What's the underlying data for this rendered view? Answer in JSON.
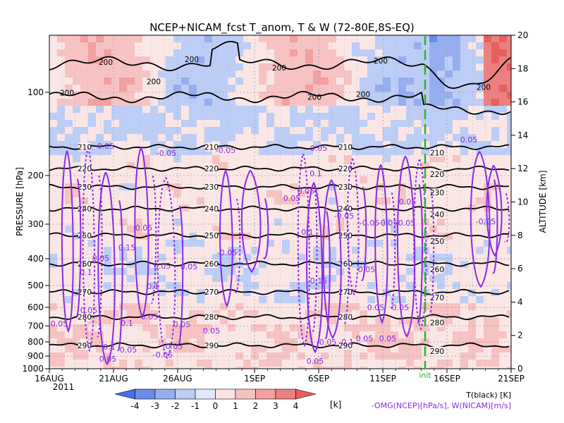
{
  "chart_data": {
    "type": "heatmap",
    "title": "NCEP+NICAM_fcst T_anom, T & W  (72-80E,8S-EQ)",
    "ylabel_left": "PRESSURE [hPa]",
    "ylabel_right": "ALTITUDE [km]",
    "x_ticks": [
      "16AUG",
      "21AUG",
      "26AUG",
      "1SEP",
      "6SEP",
      "11SEP",
      "16SEP",
      "21SEP"
    ],
    "x_year": "2011",
    "y_ticks_pressure": [
      "100",
      "200",
      "300",
      "400",
      "500",
      "600",
      "700",
      "800",
      "900",
      "1000"
    ],
    "y_ticks_altitude": [
      "0",
      "2",
      "4",
      "6",
      "8",
      "10",
      "12",
      "14",
      "16",
      "18",
      "20"
    ],
    "ylim_altitude_km": [
      0,
      20
    ],
    "init_marker": "init",
    "temperature_contours_K": [
      200,
      210,
      220,
      230,
      240,
      250,
      260,
      270,
      280,
      290
    ],
    "temperature_contour_altitude_km": {
      "210": 13.3,
      "220": 12.0,
      "230": 10.9,
      "240": 9.6,
      "250": 8.0,
      "260": 6.3,
      "270": 4.6,
      "280": 3.1,
      "290": 1.4
    },
    "w_contour_labels": [
      "0.05",
      "-0.05",
      "0.1",
      "0.15"
    ],
    "colorbar": {
      "ticks": [
        "-4",
        "-3",
        "-2",
        "-1",
        "0",
        "1",
        "2",
        "3",
        "4"
      ],
      "unit": "[k]",
      "colors": [
        "#4a6fe3",
        "#6b8be6",
        "#94aef0",
        "#bccdf6",
        "#e2e8fb",
        "#fbe3e3",
        "#f7c2c2",
        "#f2a0a0",
        "#ec7f7f",
        "#e65e5e"
      ]
    },
    "legend": {
      "line1": "T(black) [K]",
      "line2": "-OMG(NCEP)[hPa/s], W(NICAM)[m/s]"
    }
  }
}
